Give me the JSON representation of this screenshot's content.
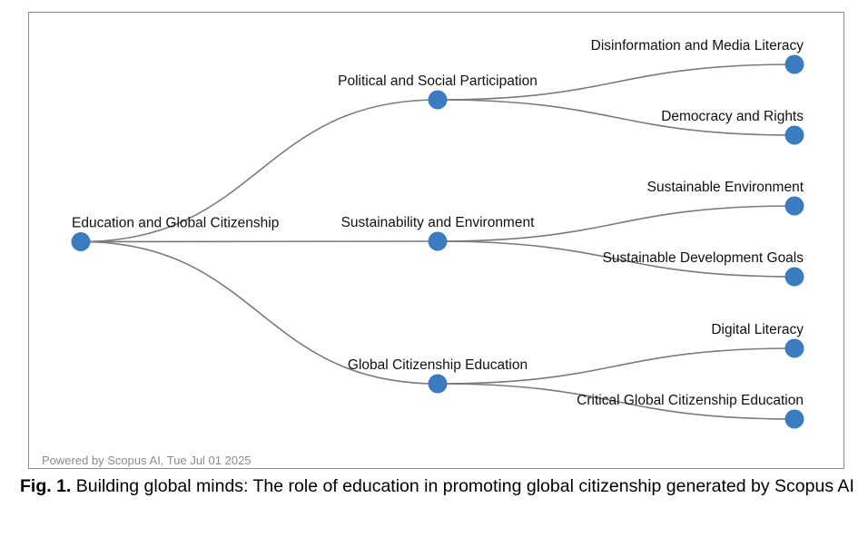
{
  "tree": {
    "root": {
      "id": "root",
      "label": "Education and Global Citizenship",
      "children": [
        {
          "id": "political",
          "label": "Political and Social Participation",
          "children": [
            {
              "id": "disinfo",
              "label": "Disinformation and Media Literacy"
            },
            {
              "id": "democracy",
              "label": "Democracy and Rights"
            }
          ]
        },
        {
          "id": "sustainability",
          "label": "Sustainability and Environment",
          "children": [
            {
              "id": "sust-env",
              "label": "Sustainable Environment"
            },
            {
              "id": "sdg",
              "label": "Sustainable Development Goals"
            }
          ]
        },
        {
          "id": "gce",
          "label": "Global Citizenship Education",
          "children": [
            {
              "id": "digital",
              "label": "Digital Literacy"
            },
            {
              "id": "critical",
              "label": "Critical Global Citizenship Education"
            }
          ]
        }
      ]
    }
  },
  "footer": "Powered by Scopus AI, Tue Jul 01 2025",
  "caption": {
    "label": "Fig. 1.",
    "text": " Building global minds: The role of education in promoting global citizenship generated by Scopus AI"
  },
  "colors": {
    "node": "#3b7bbf",
    "link": "#7a7a7a",
    "frame": "#8a8a8a",
    "footer": "#8c8c8c"
  }
}
